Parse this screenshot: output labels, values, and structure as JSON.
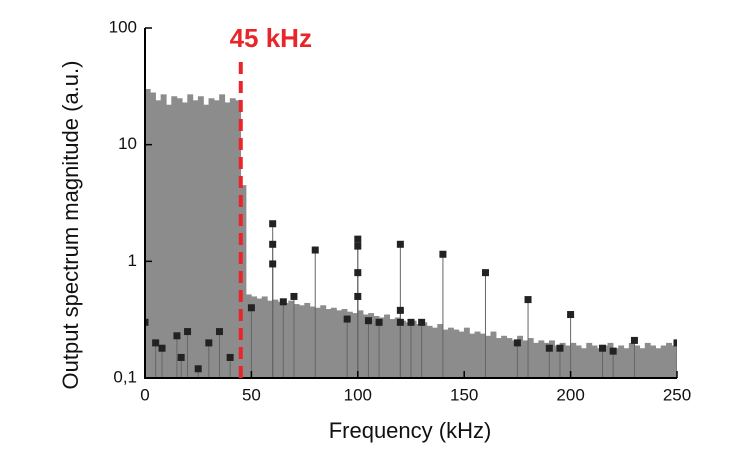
{
  "chart_data": {
    "type": "spectrum",
    "xlabel": "Frequency (kHz)",
    "ylabel": "Output spectrum magnitude (a.u.)",
    "xlim": [
      0,
      250
    ],
    "xticks": [
      0,
      50,
      100,
      150,
      200,
      250
    ],
    "ylim": [
      0.1,
      100
    ],
    "yscale": "log",
    "yticks": [
      {
        "value": 0.1,
        "label": "0,1"
      },
      1,
      10,
      100
    ],
    "series": [
      {
        "kind": "bars",
        "color": "#8c8c8c",
        "x": [
          0,
          2.5,
          5,
          7.5,
          10,
          12.5,
          15,
          17.5,
          20,
          22.5,
          25,
          27.5,
          30,
          32.5,
          35,
          37.5,
          40,
          42.5,
          45,
          47.5,
          50,
          52.5,
          55,
          57.5,
          60,
          62.5,
          65,
          67.5,
          70,
          72.5,
          75,
          77.5,
          80,
          82.5,
          85,
          87.5,
          90,
          92.5,
          95,
          97.5,
          100,
          102.5,
          105,
          107.5,
          110,
          112.5,
          115,
          117.5,
          120,
          122.5,
          125,
          127.5,
          130,
          132.5,
          135,
          137.5,
          140,
          142.5,
          145,
          147.5,
          150,
          152.5,
          155,
          157.5,
          160,
          162.5,
          165,
          167.5,
          170,
          172.5,
          175,
          177.5,
          180,
          182.5,
          185,
          187.5,
          190,
          192.5,
          195,
          197.5,
          200,
          202.5,
          205,
          207.5,
          210,
          212.5,
          215,
          217.5,
          220,
          222.5,
          225,
          227.5,
          230,
          232.5,
          235,
          237.5,
          240,
          242.5,
          245,
          247.5,
          250
        ],
        "values": [
          30,
          28,
          24,
          27,
          22,
          26,
          25,
          23,
          27,
          24,
          26,
          22,
          25,
          24,
          27,
          23,
          25,
          24,
          4.5,
          0.52,
          0.5,
          0.48,
          0.5,
          0.46,
          0.47,
          0.45,
          0.44,
          0.46,
          0.43,
          0.42,
          0.44,
          0.41,
          0.4,
          0.42,
          0.39,
          0.4,
          0.38,
          0.39,
          0.37,
          0.36,
          0.38,
          0.35,
          0.36,
          0.34,
          0.33,
          0.35,
          0.32,
          0.33,
          0.31,
          0.3,
          0.31,
          0.29,
          0.3,
          0.28,
          0.27,
          0.29,
          0.26,
          0.27,
          0.26,
          0.25,
          0.27,
          0.24,
          0.25,
          0.24,
          0.23,
          0.25,
          0.22,
          0.23,
          0.22,
          0.21,
          0.23,
          0.21,
          0.22,
          0.2,
          0.21,
          0.2,
          0.21,
          0.19,
          0.2,
          0.19,
          0.2,
          0.19,
          0.18,
          0.2,
          0.19,
          0.18,
          0.19,
          0.2,
          0.18,
          0.19,
          0.18,
          0.2,
          0.19,
          0.18,
          0.2,
          0.19,
          0.18,
          0.19,
          0.2,
          0.19,
          0.2
        ]
      },
      {
        "kind": "points",
        "color": "#222222",
        "x": [
          0,
          5,
          8,
          15,
          17,
          20,
          25,
          30,
          35,
          40,
          50,
          60,
          60,
          60,
          65,
          70,
          80,
          95,
          100,
          100,
          100,
          100,
          105,
          110,
          120,
          120,
          120,
          125,
          130,
          140,
          160,
          175,
          180,
          190,
          195,
          200,
          215,
          220,
          230,
          250
        ],
        "values": [
          0.3,
          0.2,
          0.18,
          0.23,
          0.15,
          0.25,
          0.12,
          0.2,
          0.25,
          0.15,
          0.4,
          2.1,
          1.4,
          0.95,
          0.45,
          0.5,
          1.25,
          0.32,
          1.55,
          1.35,
          0.8,
          0.5,
          0.31,
          0.3,
          1.4,
          0.38,
          0.3,
          0.3,
          0.3,
          1.15,
          0.8,
          0.2,
          0.47,
          0.18,
          0.18,
          0.35,
          0.18,
          0.17,
          0.21,
          0.2
        ]
      }
    ],
    "annotation": {
      "text": "45 kHz",
      "x": 45,
      "color": "#e8262a"
    }
  }
}
